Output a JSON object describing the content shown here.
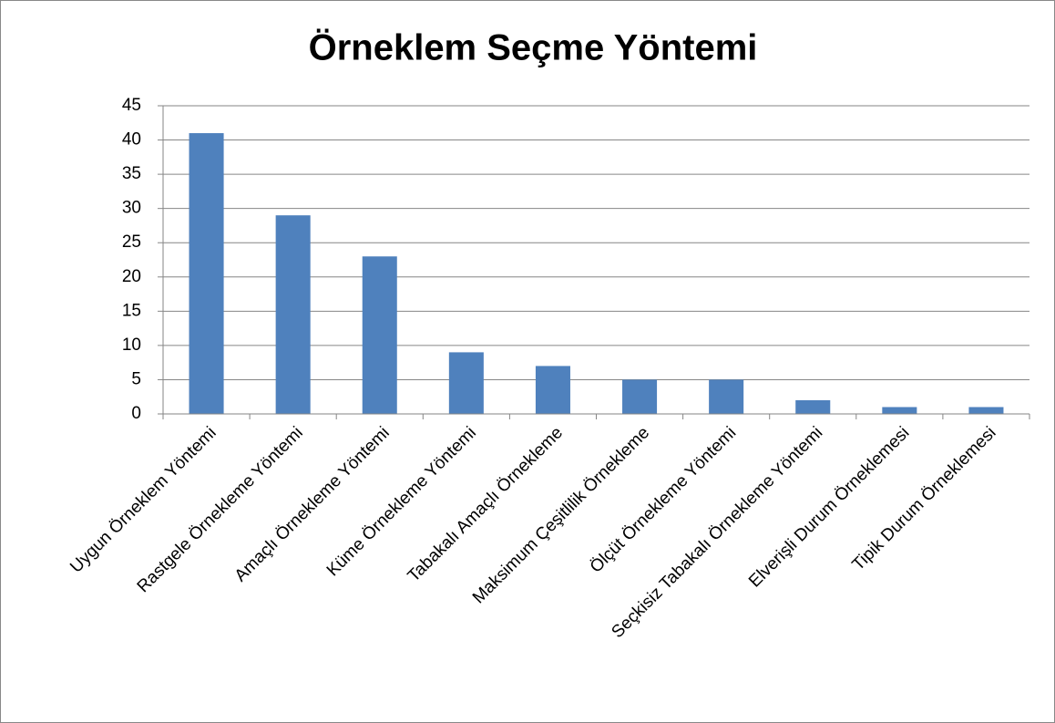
{
  "chart_data": {
    "type": "bar",
    "title": "Örneklem Seçme Yöntemi",
    "categories": [
      "Uygun Örneklem Yöntemi",
      "Rastgele Örnekleme Yöntemi",
      "Amaçlı Örnekleme Yöntemi",
      "Küme Örnekleme Yöntemi",
      "Tabakalı Amaçlı Örnekleme",
      "Maksimum Çeşitlilik Örnekleme",
      "Ölçüt Örnekleme Yöntemi",
      "Seçkisiz Tabakalı Örnekleme Yöntemi",
      "Elverişli Durum Örneklemesi",
      "Tipik Durum Örneklemesi"
    ],
    "values": [
      41,
      29,
      23,
      9,
      7,
      5,
      5,
      2,
      1,
      1
    ],
    "color": "#4f81bd",
    "ylim": [
      0,
      45
    ],
    "yticks": [
      0,
      5,
      10,
      15,
      20,
      25,
      30,
      35,
      40,
      45
    ],
    "grid": true
  }
}
